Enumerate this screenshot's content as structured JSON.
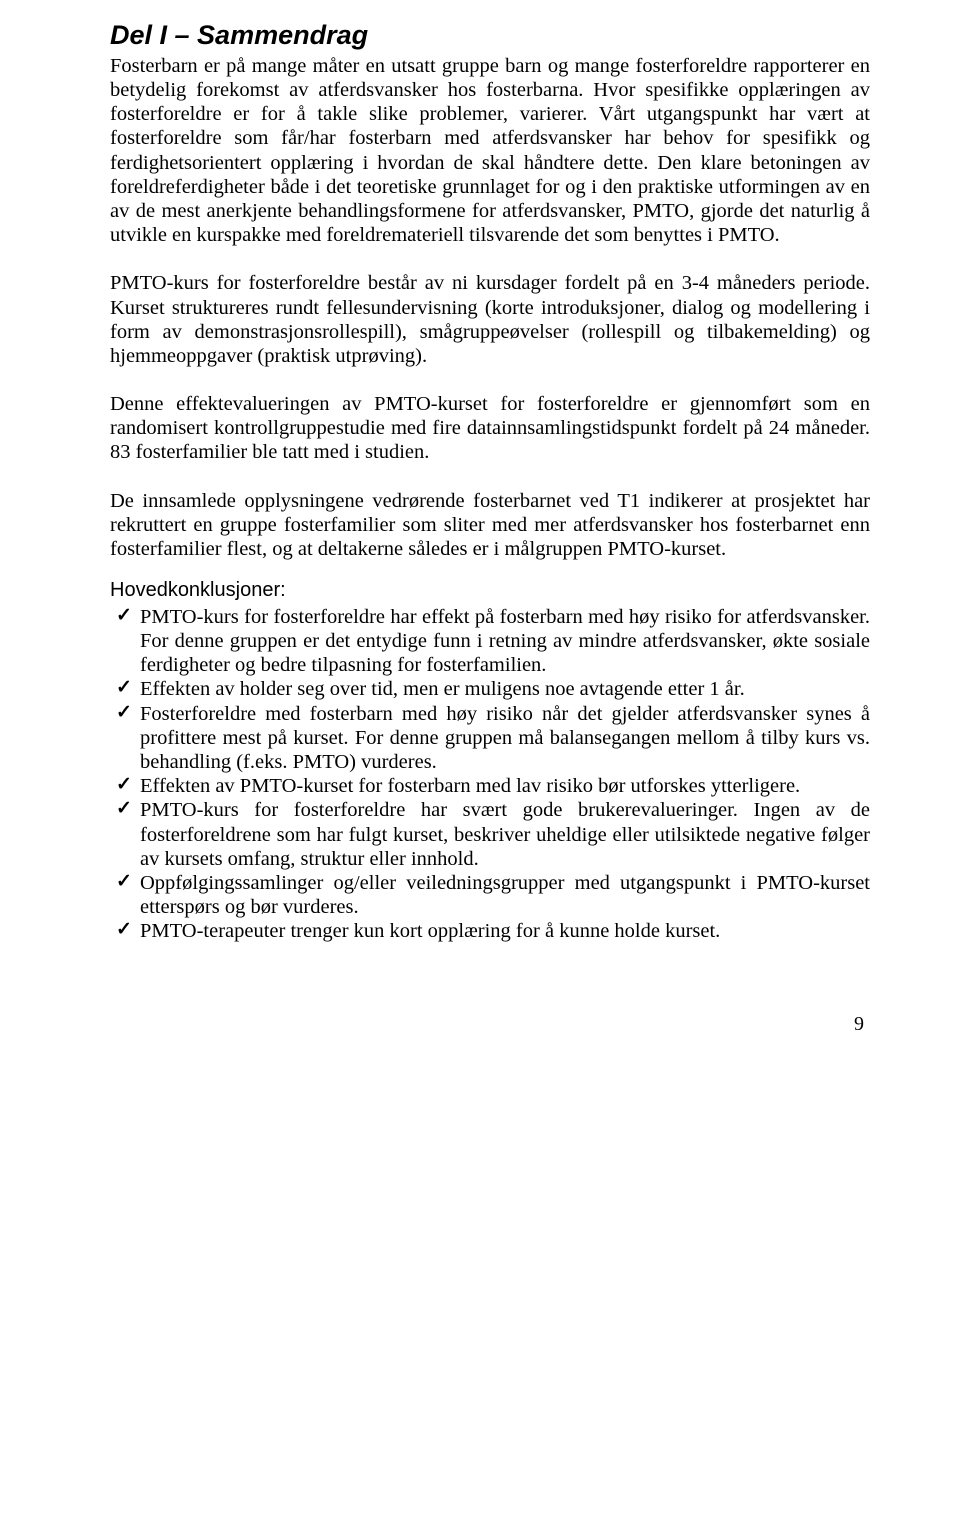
{
  "title": "Del I – Sammendrag",
  "paragraphs": {
    "p1": "Fosterbarn er på mange måter en utsatt gruppe barn og mange fosterforeldre rapporterer en betydelig forekomst av atferdsvansker hos fosterbarna. Hvor spesifikke opplæringen av fosterforeldre er for å takle slike problemer, varierer. Vårt utgangspunkt har vært at fosterforeldre som får/har fosterbarn med atferdsvansker har behov for spesifikk og ferdighetsorientert opplæring i hvordan de skal håndtere dette. Den klare betoningen av foreldreferdigheter både i det teoretiske grunnlaget for og i den praktiske utformingen av en av de mest anerkjente behandlingsformene for atferdsvansker, PMTO, gjorde det naturlig å utvikle en kurspakke med foreldremateriell tilsvarende det som benyttes i PMTO.",
    "p2": "PMTO-kurs for fosterforeldre består av ni kursdager fordelt på en 3-4 måneders periode. Kurset struktureres rundt fellesundervisning (korte introduksjoner, dialog og modellering i form av demonstrasjonsrollespill), smågruppeøvelser (rollespill og tilbakemelding) og hjemmeoppgaver (praktisk utprøving).",
    "p3": "Denne effektevalueringen av PMTO-kurset for fosterforeldre er gjennomført som en randomisert kontrollgruppestudie med fire datainnsamlingstidspunkt fordelt på 24 måneder. 83 fosterfamilier ble tatt med i studien.",
    "p4": "De innsamlede opplysningene vedrørende fosterbarnet ved T1 indikerer at prosjektet har rekruttert en gruppe fosterfamilier som sliter med mer atferdsvansker hos fosterbarnet enn fosterfamilier flest, og at deltakerne således er i målgruppen PMTO-kurset."
  },
  "subhead": "Hovedkonklusjoner:",
  "bullets": [
    "PMTO-kurs for fosterforeldre har effekt på fosterbarn med høy risiko for atferdsvansker. For denne gruppen er det entydige funn i retning av mindre atferdsvansker, økte sosiale ferdigheter og bedre tilpasning for fosterfamilien.",
    "Effekten av holder seg over tid, men er muligens noe avtagende etter 1 år.",
    "Fosterforeldre med fosterbarn med høy risiko når det gjelder atferdsvansker synes å profittere mest på kurset. For denne gruppen må balansegangen mellom å tilby kurs vs. behandling (f.eks. PMTO) vurderes.",
    "Effekten av PMTO-kurset for fosterbarn med lav risiko bør utforskes ytterligere.",
    "PMTO-kurs for fosterforeldre har svært gode brukerevalueringer. Ingen av de fosterforeldrene som har fulgt kurset, beskriver uheldige eller utilsiktede negative følger av kursets omfang, struktur eller innhold.",
    "Oppfølgingssamlinger og/eller veiledningsgrupper med utgangspunkt i PMTO-kurset etterspørs og bør vurderes.",
    "PMTO-terapeuter trenger kun kort opplæring for å kunne holde kurset."
  ],
  "page_number": "9"
}
